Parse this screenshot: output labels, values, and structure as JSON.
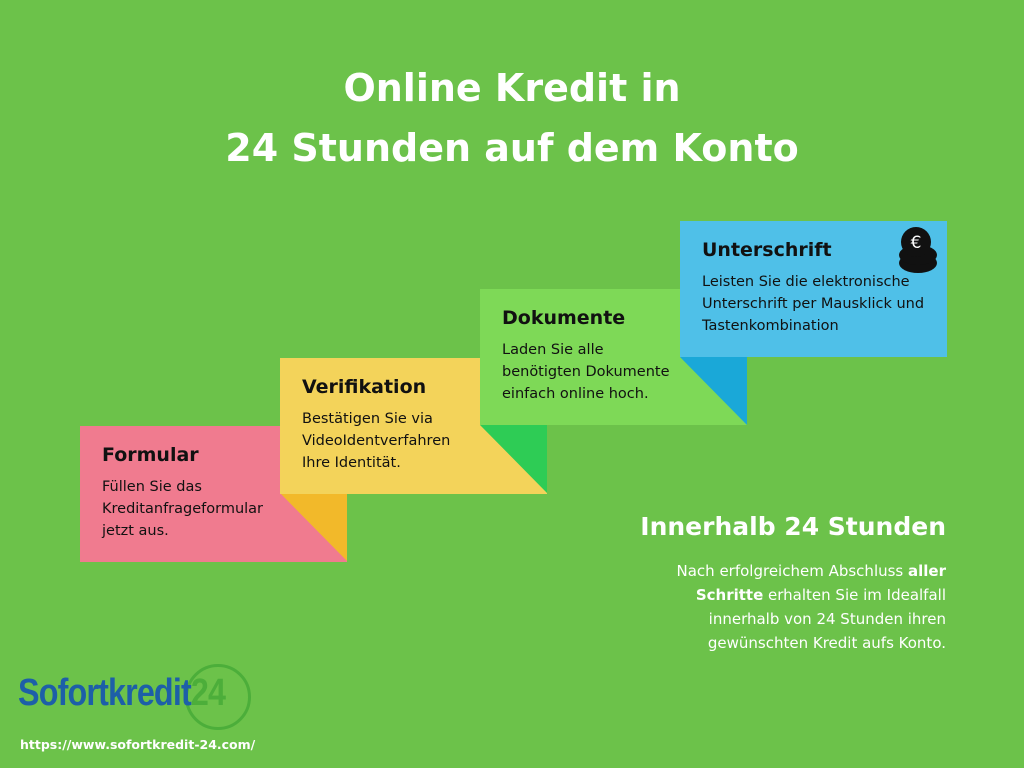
{
  "title": {
    "line1": "Online Kredit in",
    "line2": "24 Stunden auf dem Konto"
  },
  "steps": [
    {
      "title": "Formular",
      "text": "Füllen Sie das Kreditanfrageformular jetzt aus.",
      "color": "#f07b8f"
    },
    {
      "title": "Verifikation",
      "text": "Bestätigen Sie via VideoIdentverfahren Ihre Identität.",
      "color": "#f3d35a",
      "tail_color": "#f2b92a"
    },
    {
      "title": "Dokumente",
      "text": "Laden Sie alle benötigten Dokumente einfach online hoch.",
      "color": "#7ed957",
      "tail_color": "#2ecc55"
    },
    {
      "title": "Unterschrift",
      "text": "Leisten Sie die elektronische Unterschrift per Mausklick und Tastenkombination",
      "color": "#4fc0e8",
      "tail_color": "#1aa8d8",
      "icon": "euro-coins-icon"
    }
  ],
  "info": {
    "heading": "Innerhalb 24 Stunden",
    "text_pre": "Nach erfolgreichem Abschluss ",
    "text_bold": "aller Schritte",
    "text_post": " erhalten Sie im Idealfall innerhalb von 24 Stunden ihren gewünschten Kredit aufs Konto."
  },
  "logo": {
    "text": "Sofortkredit",
    "number": "24",
    "url": "https://www.sofortkredit-24.com/"
  },
  "colors": {
    "background": "#6cc24a",
    "logo_blue": "#1d5fa8",
    "logo_green": "#4cae3a"
  }
}
